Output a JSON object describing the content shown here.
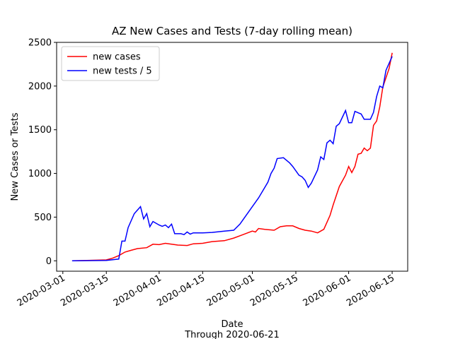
{
  "chart_data": {
    "type": "line",
    "title": "AZ New Cases and Tests (7-day rolling mean)",
    "xlabel": "Date",
    "xlabel_note": "Through 2020-06-21",
    "ylabel": "New Cases or Tests",
    "xlim": [
      "2020-02-28",
      "2020-06-20"
    ],
    "xticks": [
      "2020-03-01",
      "2020-03-15",
      "2020-04-01",
      "2020-04-15",
      "2020-05-01",
      "2020-05-15",
      "2020-06-01",
      "2020-06-15"
    ],
    "ylim": [
      -119,
      2500
    ],
    "yticks": [
      0,
      500,
      1000,
      1500,
      2000,
      2500
    ],
    "legend": "upper left",
    "series": [
      {
        "name": "new cases",
        "color": "#ff0000",
        "x": [
          "2020-03-04",
          "2020-03-15",
          "2020-03-17",
          "2020-03-19",
          "2020-03-21",
          "2020-03-23",
          "2020-03-25",
          "2020-03-28",
          "2020-03-30",
          "2020-04-01",
          "2020-04-03",
          "2020-04-05",
          "2020-04-07",
          "2020-04-10",
          "2020-04-12",
          "2020-04-15",
          "2020-04-18",
          "2020-04-22",
          "2020-04-25",
          "2020-04-28",
          "2020-05-01",
          "2020-05-02",
          "2020-05-03",
          "2020-05-05",
          "2020-05-08",
          "2020-05-10",
          "2020-05-12",
          "2020-05-14",
          "2020-05-16",
          "2020-05-18",
          "2020-05-20",
          "2020-05-22",
          "2020-05-24",
          "2020-05-25",
          "2020-05-26",
          "2020-05-27",
          "2020-05-29",
          "2020-05-31",
          "2020-06-01",
          "2020-06-02",
          "2020-06-03",
          "2020-06-04",
          "2020-06-05",
          "2020-06-06",
          "2020-06-07",
          "2020-06-08",
          "2020-06-09",
          "2020-06-10",
          "2020-06-11",
          "2020-06-12",
          "2020-06-14",
          "2020-06-15"
        ],
        "values": [
          0,
          10,
          30,
          60,
          100,
          120,
          140,
          150,
          190,
          185,
          200,
          190,
          180,
          175,
          195,
          200,
          220,
          230,
          260,
          300,
          340,
          330,
          370,
          360,
          350,
          390,
          400,
          400,
          370,
          350,
          340,
          320,
          360,
          440,
          520,
          640,
          850,
          980,
          1080,
          1010,
          1080,
          1220,
          1230,
          1290,
          1260,
          1290,
          1550,
          1600,
          1760,
          1990,
          2200,
          2380
        ]
      },
      {
        "name": "new tests / 5",
        "color": "#0000ff",
        "x": [
          "2020-03-04",
          "2020-03-15",
          "2020-03-19",
          "2020-03-20",
          "2020-03-21",
          "2020-03-22",
          "2020-03-24",
          "2020-03-26",
          "2020-03-27",
          "2020-03-28",
          "2020-03-29",
          "2020-03-30",
          "2020-04-01",
          "2020-04-02",
          "2020-04-03",
          "2020-04-04",
          "2020-04-05",
          "2020-04-06",
          "2020-04-08",
          "2020-04-09",
          "2020-04-10",
          "2020-04-11",
          "2020-04-12",
          "2020-04-15",
          "2020-04-18",
          "2020-04-22",
          "2020-04-25",
          "2020-04-27",
          "2020-04-28",
          "2020-05-01",
          "2020-05-03",
          "2020-05-05",
          "2020-05-06",
          "2020-05-07",
          "2020-05-08",
          "2020-05-09",
          "2020-05-11",
          "2020-05-13",
          "2020-05-14",
          "2020-05-16",
          "2020-05-17",
          "2020-05-18",
          "2020-05-19",
          "2020-05-20",
          "2020-05-22",
          "2020-05-23",
          "2020-05-24",
          "2020-05-25",
          "2020-05-26",
          "2020-05-27",
          "2020-05-28",
          "2020-05-29",
          "2020-05-31",
          "2020-06-01",
          "2020-06-02",
          "2020-06-03",
          "2020-06-05",
          "2020-06-06",
          "2020-06-08",
          "2020-06-09",
          "2020-06-10",
          "2020-06-11",
          "2020-06-12",
          "2020-06-13",
          "2020-06-15"
        ],
        "values": [
          0,
          5,
          20,
          225,
          225,
          380,
          540,
          620,
          480,
          540,
          390,
          450,
          410,
          395,
          410,
          380,
          420,
          310,
          310,
          300,
          330,
          305,
          320,
          320,
          325,
          340,
          350,
          420,
          470,
          620,
          720,
          840,
          900,
          1000,
          1060,
          1170,
          1180,
          1120,
          1080,
          980,
          960,
          920,
          840,
          890,
          1040,
          1190,
          1160,
          1350,
          1380,
          1340,
          1540,
          1570,
          1720,
          1580,
          1580,
          1710,
          1680,
          1620,
          1620,
          1700,
          1880,
          2000,
          1980,
          2180,
          2340
        ]
      }
    ]
  }
}
